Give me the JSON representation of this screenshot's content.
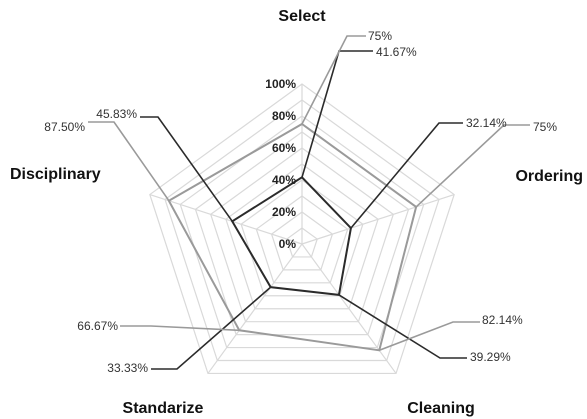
{
  "chart_data": {
    "type": "radar",
    "title": "",
    "categories": [
      "Select",
      "Ordering",
      "Cleaning",
      "Standarize",
      "Disciplinary"
    ],
    "ylim": [
      0,
      100
    ],
    "tick_labels": [
      "0%",
      "20%",
      "40%",
      "60%",
      "80%",
      "100%"
    ],
    "grid": true,
    "legend": "none",
    "series": [
      {
        "values": [
          75,
          75,
          82.14,
          66.67,
          87.5
        ],
        "value_labels": [
          "75%",
          "75%",
          "82.14%",
          "66.67%",
          "87.50%"
        ],
        "color": "#9a9a9a"
      },
      {
        "values": [
          41.67,
          32.14,
          39.29,
          33.33,
          45.83
        ],
        "value_labels": [
          "41.67%",
          "32.14%",
          "39.29%",
          "33.33%",
          "45.83%"
        ],
        "color": "#2b2b2b"
      }
    ]
  }
}
